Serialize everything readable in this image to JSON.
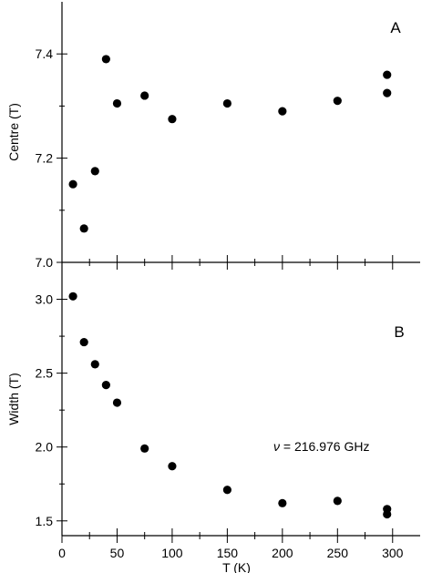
{
  "chart_data": [
    {
      "type": "scatter",
      "panel_letter": "A",
      "title": "",
      "xlabel": "",
      "ylabel": "Centre (T)",
      "xlim": [
        0,
        325
      ],
      "ylim": [
        7.0,
        7.5
      ],
      "x_ticks_major": [
        0,
        50,
        100,
        150,
        200,
        250,
        300
      ],
      "x_ticks_minor": [
        25,
        75,
        125,
        175,
        225,
        275
      ],
      "y_ticks_major": [
        7.0,
        7.2,
        7.4
      ],
      "y_ticks_minor": [
        7.1,
        7.3
      ],
      "y_tick_labels": [
        "7.0",
        "7.2",
        "7.4"
      ],
      "grid": false,
      "series": [
        {
          "color": "#000000",
          "x": [
            10,
            20,
            30,
            40,
            50,
            75,
            100,
            150,
            200,
            250,
            295,
            295
          ],
          "y": [
            7.15,
            7.065,
            7.175,
            7.39,
            7.305,
            7.32,
            7.275,
            7.305,
            7.29,
            7.31,
            7.36,
            7.325
          ]
        }
      ]
    },
    {
      "type": "scatter",
      "panel_letter": "B",
      "title": "",
      "xlabel": "T (K)",
      "ylabel": "Width (T)",
      "xlim": [
        0,
        325
      ],
      "ylim": [
        1.4,
        3.25
      ],
      "x_ticks_major": [
        0,
        50,
        100,
        150,
        200,
        250,
        300
      ],
      "x_ticks_minor": [
        25,
        75,
        125,
        175,
        225,
        275
      ],
      "x_tick_labels": [
        "0",
        "50",
        "100",
        "150",
        "200",
        "250",
        "300"
      ],
      "y_ticks_major": [
        1.5,
        2.0,
        2.5,
        3.0
      ],
      "y_ticks_minor": [
        1.75,
        2.25,
        2.75
      ],
      "y_tick_labels": [
        "1.5",
        "2.0",
        "2.5",
        "3.0"
      ],
      "grid": false,
      "annotation": {
        "symbol": "ν",
        "text": " = 216.976 GHz"
      },
      "series": [
        {
          "color": "#000000",
          "x": [
            10,
            20,
            30,
            40,
            50,
            75,
            100,
            150,
            200,
            250,
            295,
            295
          ],
          "y": [
            3.02,
            2.71,
            2.56,
            2.42,
            2.3,
            1.99,
            1.87,
            1.71,
            1.62,
            1.635,
            1.58,
            1.545
          ]
        }
      ]
    }
  ]
}
